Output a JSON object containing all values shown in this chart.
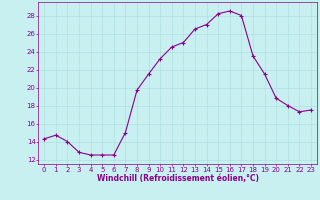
{
  "x": [
    0,
    1,
    2,
    3,
    4,
    5,
    6,
    7,
    8,
    9,
    10,
    11,
    12,
    13,
    14,
    15,
    16,
    17,
    18,
    19,
    20,
    21,
    22,
    23
  ],
  "y": [
    14.3,
    14.7,
    14.0,
    12.8,
    12.5,
    12.5,
    12.5,
    15.0,
    19.7,
    21.5,
    23.2,
    24.5,
    25.0,
    26.5,
    27.0,
    28.2,
    28.5,
    28.0,
    23.5,
    21.5,
    18.8,
    18.0,
    17.3,
    17.5
  ],
  "line_color": "#8B008B",
  "marker": "+",
  "marker_size": 3,
  "bg_color": "#c8f0f0",
  "grid_color": "#aadddd",
  "xlabel": "Windchill (Refroidissement éolien,°C)",
  "xlim": [
    -0.5,
    23.5
  ],
  "ylim": [
    11.5,
    29.5
  ],
  "yticks": [
    12,
    14,
    16,
    18,
    20,
    22,
    24,
    26,
    28
  ],
  "xticks": [
    0,
    1,
    2,
    3,
    4,
    5,
    6,
    7,
    8,
    9,
    10,
    11,
    12,
    13,
    14,
    15,
    16,
    17,
    18,
    19,
    20,
    21,
    22,
    23
  ],
  "tick_color": "#8B008B",
  "tick_label_fontsize": 5.0,
  "xlabel_fontsize": 5.5,
  "linewidth": 0.8,
  "markeredgewidth": 0.8
}
